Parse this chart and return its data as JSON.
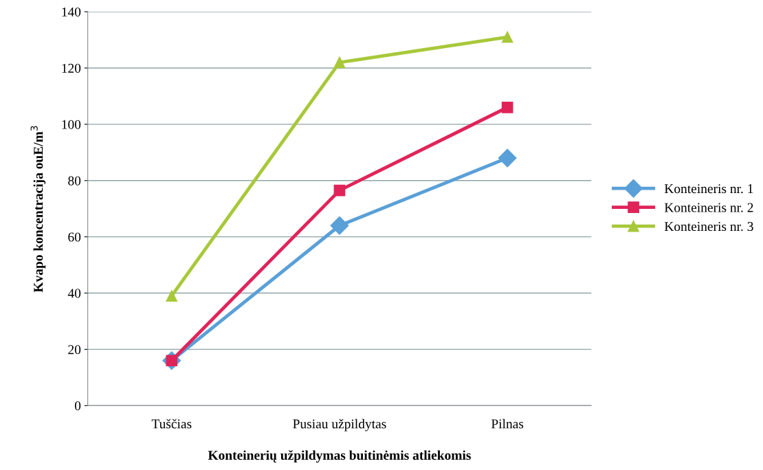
{
  "chart_data": {
    "type": "line",
    "xlabel": "Konteinerių užpildymas buitinėmis atliekomis",
    "ylabel": "Kvapo koncentracija ouE/m$^{3}$",
    "categories": [
      "Tuščias",
      "Pusiau užpildytas",
      "Pilnas"
    ],
    "series": [
      {
        "name": "Konteineris nr. 1",
        "color": "#5aa0d8",
        "marker": "diamond",
        "values": [
          16,
          64,
          88
        ]
      },
      {
        "name": "Konteineris nr. 2",
        "color": "#e0245a",
        "marker": "square",
        "values": [
          16,
          76.5,
          106
        ]
      },
      {
        "name": "Konteineris nr. 3",
        "color": "#a8c83a",
        "marker": "triangle",
        "values": [
          39,
          122,
          131
        ]
      }
    ],
    "ylim": [
      0,
      140
    ],
    "yticks": [
      0,
      20,
      40,
      60,
      80,
      100,
      120,
      140
    ],
    "grid": "y",
    "legend": "right",
    "line_style": "solid"
  }
}
